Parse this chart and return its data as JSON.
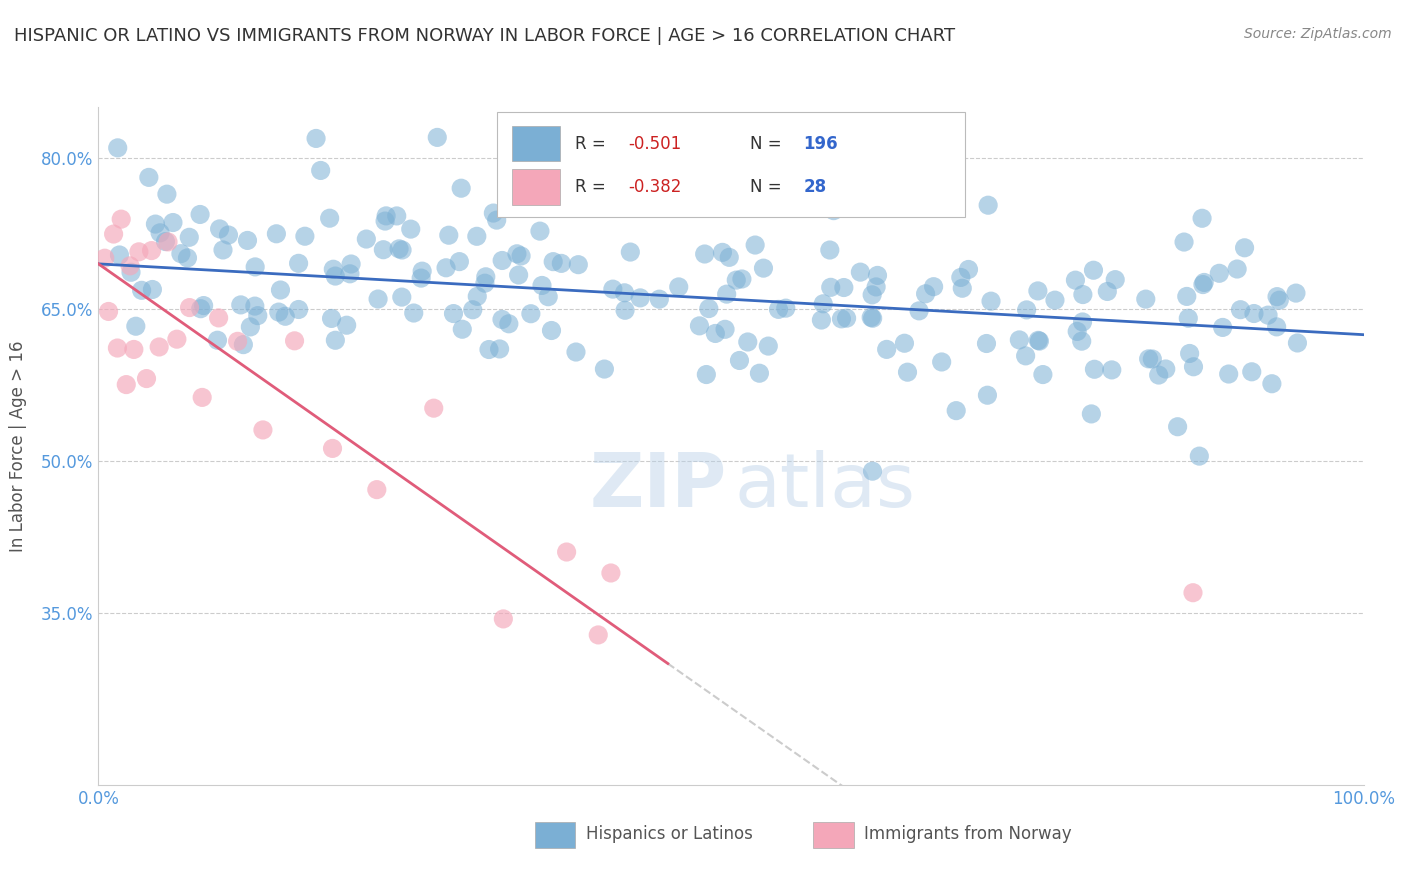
{
  "title": "HISPANIC OR LATINO VS IMMIGRANTS FROM NORWAY IN LABOR FORCE | AGE > 16 CORRELATION CHART",
  "source": "Source: ZipAtlas.com",
  "ylabel": "In Labor Force | Age > 16",
  "blue_label": "Hispanics or Latinos",
  "pink_label": "Immigrants from Norway",
  "blue_R": -0.501,
  "blue_N": 196,
  "pink_R": -0.382,
  "pink_N": 28,
  "xlim": [
    0.0,
    1.0
  ],
  "ylim": [
    0.18,
    0.85
  ],
  "yticks": [
    0.35,
    0.5,
    0.65,
    0.8
  ],
  "ytick_labels": [
    "35.0%",
    "50.0%",
    "65.0%",
    "80.0%"
  ],
  "xtick_labels": [
    "0.0%",
    "100.0%"
  ],
  "blue_color": "#7bafd4",
  "pink_color": "#f4a7b9",
  "blue_line_color": "#3a6bbf",
  "pink_line_color": "#e05c7a",
  "background_color": "#ffffff",
  "grid_color": "#cccccc",
  "blue_trend_y_start": 0.695,
  "blue_trend_y_end": 0.625,
  "pink_trend_y_start": 0.695,
  "pink_trend_y_end": 0.3,
  "pink_trend_x_end": 0.45
}
